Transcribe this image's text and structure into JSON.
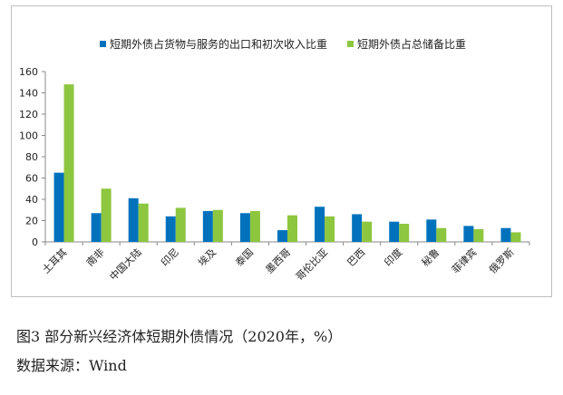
{
  "chart_data": {
    "type": "bar",
    "categories": [
      "土耳其",
      "南非",
      "中国大陆",
      "印尼",
      "埃及",
      "泰国",
      "墨西哥",
      "哥伦比亚",
      "巴西",
      "印度",
      "秘鲁",
      "菲律宾",
      "俄罗斯"
    ],
    "series": [
      {
        "name": "短期外债占货物与服务的出口和初次收入比重",
        "color": "#0072BC",
        "values": [
          65,
          27,
          41,
          24,
          29,
          27,
          11,
          33,
          26,
          19,
          21,
          15,
          13
        ]
      },
      {
        "name": "短期外债占总储备比重",
        "color": "#8DC63F",
        "values": [
          148,
          50,
          36,
          32,
          30,
          29,
          25,
          24,
          19,
          17,
          13,
          12,
          9
        ]
      }
    ],
    "yticks": [
      "0",
      "20",
      "40",
      "60",
      "80",
      "100",
      "120",
      "140",
      "160"
    ],
    "ylim": [
      0,
      160
    ],
    "grid": false,
    "legend_position": "top"
  },
  "caption": "图3  部分新兴经济体短期外债情况（2020年，%）",
  "source": "数据来源：Wind"
}
